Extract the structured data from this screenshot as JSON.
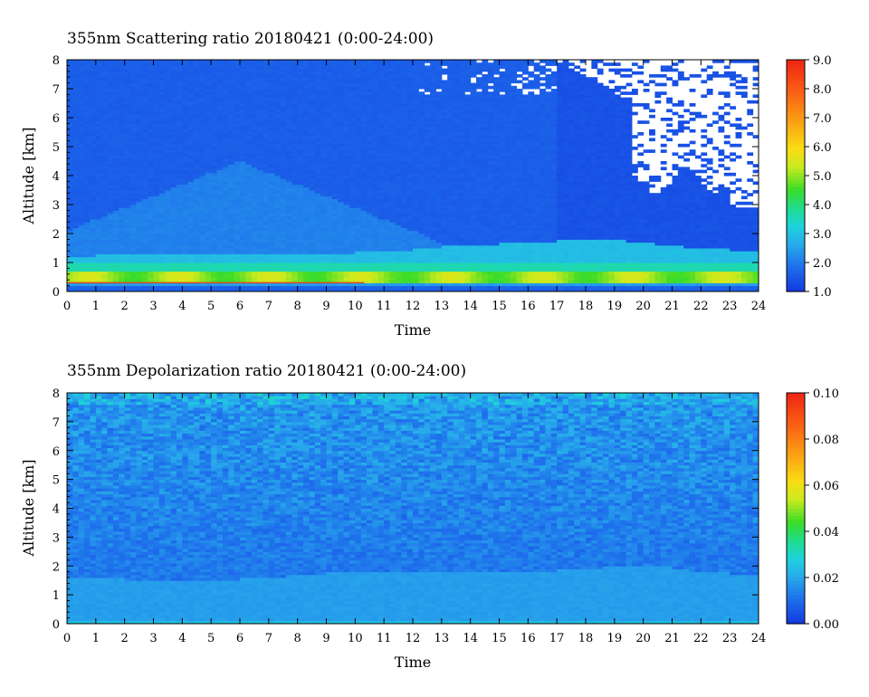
{
  "chart_data": [
    {
      "type": "heatmap",
      "title": "355nm Scattering ratio  20180421 (0:00-24:00)",
      "xlabel": "Time",
      "ylabel": "Altitude [km]",
      "xlim": [
        0,
        24
      ],
      "ylim": [
        0,
        8
      ],
      "x_ticks": [
        "0",
        "1",
        "2",
        "3",
        "4",
        "5",
        "6",
        "7",
        "8",
        "9",
        "10",
        "11",
        "12",
        "13",
        "14",
        "15",
        "16",
        "17",
        "18",
        "19",
        "20",
        "21",
        "22",
        "23",
        "24"
      ],
      "y_ticks": [
        "0",
        "1",
        "2",
        "3",
        "4",
        "5",
        "6",
        "7",
        "8"
      ],
      "colorbar": {
        "range": [
          1.0,
          9.0
        ],
        "ticks": [
          "1.0",
          "2.0",
          "3.0",
          "4.0",
          "5.0",
          "6.0",
          "7.0",
          "8.0",
          "9.0"
        ],
        "colormap": "rainbow (blue-cyan-green-yellow-red)"
      },
      "features": {
        "aerosol_layer_top_km": [
          1.2,
          1.25,
          1.3,
          1.3,
          1.3,
          1.3,
          1.3,
          1.3,
          1.25,
          1.3,
          1.35,
          1.4,
          1.45,
          1.55,
          1.6,
          1.65,
          1.7,
          1.75,
          1.8,
          1.8,
          1.7,
          1.6,
          1.5,
          1.45,
          1.45
        ],
        "peak_layer_km": [
          0.4,
          0.7
        ],
        "peak_value": 5.5,
        "missing_data_region": "upper right, from about 19h onward above 3-4 km"
      }
    },
    {
      "type": "heatmap",
      "title": "355nm Depolarization ratio  20180421 (0:00-24:00)",
      "xlabel": "Time",
      "ylabel": "Altitude [km]",
      "xlim": [
        0,
        24
      ],
      "ylim": [
        0,
        8
      ],
      "x_ticks": [
        "0",
        "1",
        "2",
        "3",
        "4",
        "5",
        "6",
        "7",
        "8",
        "9",
        "10",
        "11",
        "12",
        "13",
        "14",
        "15",
        "16",
        "17",
        "18",
        "19",
        "20",
        "21",
        "22",
        "23",
        "24"
      ],
      "y_ticks": [
        "0",
        "1",
        "2",
        "3",
        "4",
        "5",
        "6",
        "7",
        "8"
      ],
      "colorbar": {
        "range": [
          0.0,
          0.1
        ],
        "ticks": [
          "0.00",
          "0.02",
          "0.04",
          "0.06",
          "0.08",
          "0.10"
        ],
        "colormap": "rainbow (blue-cyan-green-yellow-red)"
      },
      "features": {
        "boundary_layer_value": 0.018,
        "free_troposphere_value": 0.012,
        "boundary_layer_top_km": [
          1.6,
          1.6,
          1.55,
          1.5,
          1.5,
          1.5,
          1.55,
          1.6,
          1.7,
          1.75,
          1.8,
          1.8,
          1.8,
          1.85,
          1.85,
          1.8,
          1.8,
          1.85,
          1.9,
          2.0,
          2.05,
          1.95,
          1.8,
          1.75,
          1.75
        ]
      }
    }
  ]
}
